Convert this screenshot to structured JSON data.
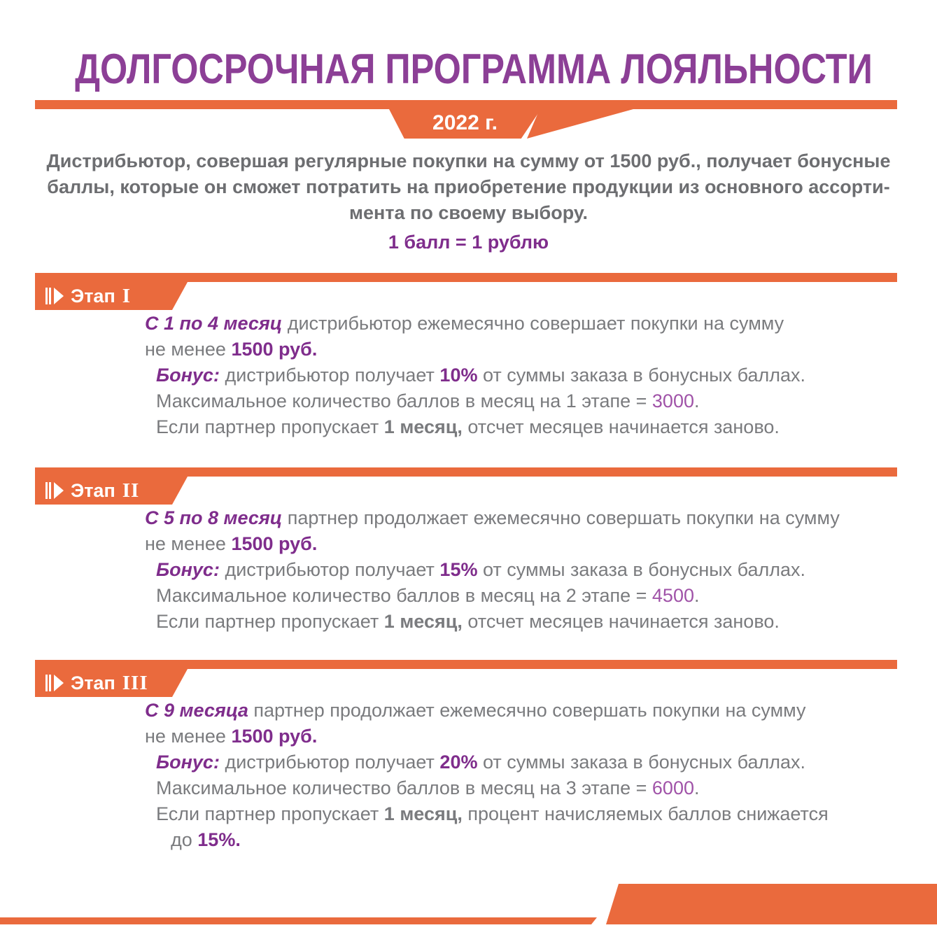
{
  "title": "ДОЛГОСРОЧНАЯ ПРОГРАММА ЛОЯЛЬНОСТИ",
  "year_badge": "2022 г.",
  "intro_lines": [
    "Дистрибьютор, совершая регулярные покупки на сумму от 1500 руб., получает бонусные",
    "баллы, которые он сможет потратить на приобретение продукции из основного ассорти-",
    "мента по своему выбору."
  ],
  "points_rule": "1 балл = 1 рублю",
  "stage_label": "Этап",
  "stages": [
    {
      "numeral": "I",
      "lines": [
        {
          "indent": 0,
          "segments": [
            {
              "t": "С 1 по 4 месяц",
              "s": "em"
            },
            {
              "t": " дистрибьютор ежемесячно совершает покупки на сумму",
              "s": "g"
            }
          ]
        },
        {
          "indent": 0,
          "segments": [
            {
              "t": "не менее ",
              "s": "g"
            },
            {
              "t": "1500 руб.",
              "s": "strong"
            }
          ]
        },
        {
          "indent": 1,
          "segments": [
            {
              "t": "Бонус: ",
              "s": "em"
            },
            {
              "t": "дистрибьютор получает ",
              "s": "g"
            },
            {
              "t": "10%",
              "s": "strong"
            },
            {
              "t": " от суммы заказа в бонусных баллах.",
              "s": "g"
            }
          ]
        },
        {
          "indent": 1,
          "segments": [
            {
              "t": "Максимальное количество баллов в месяц на 1 этапе = ",
              "s": "g"
            },
            {
              "t": "3000",
              "s": "num"
            },
            {
              "t": ".",
              "s": "g"
            }
          ]
        },
        {
          "indent": 1,
          "segments": [
            {
              "t": "Если партнер пропускает ",
              "s": "g"
            },
            {
              "t": "1 месяц,",
              "s": "gb"
            },
            {
              "t": " отсчет месяцев начинается заново.",
              "s": "g"
            }
          ]
        }
      ]
    },
    {
      "numeral": "II",
      "lines": [
        {
          "indent": 0,
          "segments": [
            {
              "t": "С 5 по 8 месяц",
              "s": "em"
            },
            {
              "t": " партнер продолжает ежемесячно совершать покупки на сумму",
              "s": "g"
            }
          ]
        },
        {
          "indent": 0,
          "segments": [
            {
              "t": "не менее ",
              "s": "g"
            },
            {
              "t": "1500 руб.",
              "s": "strong"
            }
          ]
        },
        {
          "indent": 1,
          "segments": [
            {
              "t": "Бонус: ",
              "s": "em"
            },
            {
              "t": "дистрибьютор получает ",
              "s": "g"
            },
            {
              "t": "15%",
              "s": "strong"
            },
            {
              "t": " от суммы заказа в бонусных баллах.",
              "s": "g"
            }
          ]
        },
        {
          "indent": 1,
          "segments": [
            {
              "t": "Максимальное количество баллов в месяц на 2 этапе = ",
              "s": "g"
            },
            {
              "t": "4500",
              "s": "num"
            },
            {
              "t": ".",
              "s": "g"
            }
          ]
        },
        {
          "indent": 1,
          "segments": [
            {
              "t": "Если партнер пропускает ",
              "s": "g"
            },
            {
              "t": "1 месяц,",
              "s": "gb"
            },
            {
              "t": " отсчет месяцев начинается заново.",
              "s": "g"
            }
          ]
        }
      ]
    },
    {
      "numeral": "III",
      "lines": [
        {
          "indent": 0,
          "segments": [
            {
              "t": "С 9 месяца",
              "s": "em"
            },
            {
              "t": " партнер продолжает ежемесячно совершать покупки на сумму",
              "s": "g"
            }
          ]
        },
        {
          "indent": 0,
          "segments": [
            {
              "t": "не менее ",
              "s": "g"
            },
            {
              "t": "1500 руб.",
              "s": "strong"
            }
          ]
        },
        {
          "indent": 1,
          "segments": [
            {
              "t": "Бонус: ",
              "s": "em"
            },
            {
              "t": "дистрибьютор получает ",
              "s": "g"
            },
            {
              "t": "20%",
              "s": "strong"
            },
            {
              "t": " от суммы заказа в бонусных баллах.",
              "s": "g"
            }
          ]
        },
        {
          "indent": 1,
          "segments": [
            {
              "t": "Максимальное количество баллов в месяц на 3 этапе = ",
              "s": "g"
            },
            {
              "t": "6000",
              "s": "num"
            },
            {
              "t": ".",
              "s": "g"
            }
          ]
        },
        {
          "indent": 1,
          "segments": [
            {
              "t": "Если партнер пропускает ",
              "s": "g"
            },
            {
              "t": "1 месяц,",
              "s": "gb"
            },
            {
              "t": " процент начисляемых баллов снижается",
              "s": "g"
            }
          ]
        },
        {
          "indent": 2,
          "segments": [
            {
              "t": "до ",
              "s": "g"
            },
            {
              "t": "15%.",
              "s": "strong"
            }
          ]
        }
      ]
    }
  ],
  "colors": {
    "orange": "#EA6A3D",
    "purple_title": "#8C3F96",
    "purple": "#7F2D8C",
    "purple_light": "#A053A8",
    "gray": "#7A7B7E",
    "gray_dark": "#6D6E71",
    "white": "#FFFFFF"
  }
}
